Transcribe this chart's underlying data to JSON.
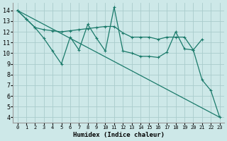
{
  "bg_color": "#cde8e8",
  "grid_color": "#aacccc",
  "line_color": "#1a7a6a",
  "x_label": "Humidex (Indice chaleur)",
  "x_ticks": [
    0,
    1,
    2,
    3,
    4,
    5,
    6,
    7,
    8,
    9,
    10,
    11,
    12,
    13,
    14,
    15,
    16,
    17,
    18,
    19,
    20,
    21,
    22,
    23
  ],
  "y_ticks": [
    4,
    5,
    6,
    7,
    8,
    9,
    10,
    11,
    12,
    13,
    14
  ],
  "ylim": [
    3.5,
    14.7
  ],
  "xlim": [
    -0.5,
    23.5
  ],
  "series1_x": [
    0,
    1,
    2,
    3,
    4,
    5,
    6,
    7,
    8,
    9,
    10,
    11,
    12,
    13,
    14,
    15,
    16,
    17,
    18,
    19,
    20,
    21
  ],
  "series1_y": [
    14.0,
    13.2,
    12.4,
    12.2,
    12.1,
    12.0,
    12.1,
    12.2,
    12.3,
    12.4,
    12.5,
    12.5,
    11.9,
    11.5,
    11.5,
    11.5,
    11.3,
    11.5,
    11.5,
    11.5,
    10.3,
    11.3
  ],
  "series2_x": [
    0,
    1,
    2,
    3,
    4,
    5,
    6,
    7,
    8,
    9,
    10,
    11,
    12,
    13,
    14,
    15,
    16,
    17,
    18,
    19,
    20,
    21,
    22,
    23
  ],
  "series2_y": [
    14.0,
    13.2,
    12.4,
    11.4,
    10.2,
    9.0,
    11.5,
    10.3,
    12.7,
    11.4,
    10.2,
    14.3,
    10.2,
    10.0,
    9.7,
    9.7,
    9.6,
    10.1,
    12.0,
    10.4,
    10.3,
    7.5,
    6.5,
    4.0
  ],
  "series3_x": [
    0,
    23
  ],
  "series3_y": [
    14.0,
    4.0
  ]
}
